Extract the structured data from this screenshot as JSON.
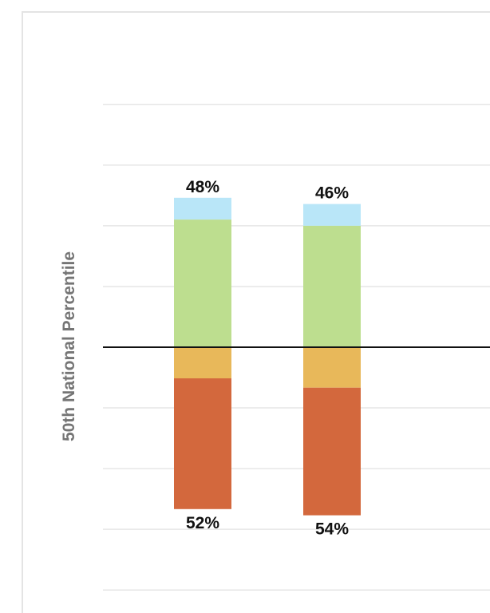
{
  "chart_data": {
    "type": "bar",
    "stacked": true,
    "diverging_baseline": "50th National Percentile",
    "ylabel": "50th National Percentile",
    "grid": true,
    "categories": [
      "",
      ""
    ],
    "series": [
      {
        "color": "#B9E6F8",
        "values": [
          7,
          7
        ]
      },
      {
        "color": "#BDDE8F",
        "values": [
          41,
          39
        ]
      },
      {
        "color": "#E8B85A",
        "values": [
          10,
          13
        ]
      },
      {
        "color": "#D3683D",
        "values": [
          42,
          41
        ]
      }
    ],
    "above_totals": [
      48,
      46
    ],
    "below_totals": [
      52,
      54
    ],
    "above_labels": [
      "48%",
      "46%"
    ],
    "below_labels": [
      "52%",
      "54%"
    ],
    "colors": {
      "grid": "#E6E6E6",
      "baseline": "#111111",
      "label": "#111111",
      "ylabel": "#757575",
      "panel_border": "#E4E4E4"
    }
  }
}
